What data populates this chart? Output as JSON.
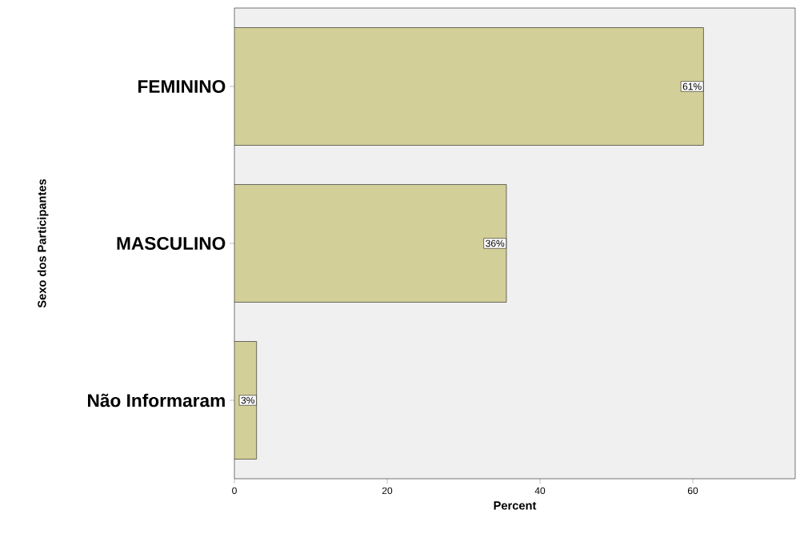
{
  "chart_data": {
    "type": "bar",
    "orientation": "horizontal",
    "categories": [
      "FEMININO",
      "MASCULINO",
      "Não Informaram"
    ],
    "values": [
      61.4,
      35.6,
      2.9
    ],
    "value_labels": [
      "61%",
      "36%",
      "3%"
    ],
    "color": "#d3cf98",
    "xlabel": "Percent",
    "ylabel": "Sexo dos Participantes",
    "xlim": [
      0,
      73.4
    ],
    "xticks": [
      0,
      20,
      40,
      60
    ],
    "grid": false
  }
}
